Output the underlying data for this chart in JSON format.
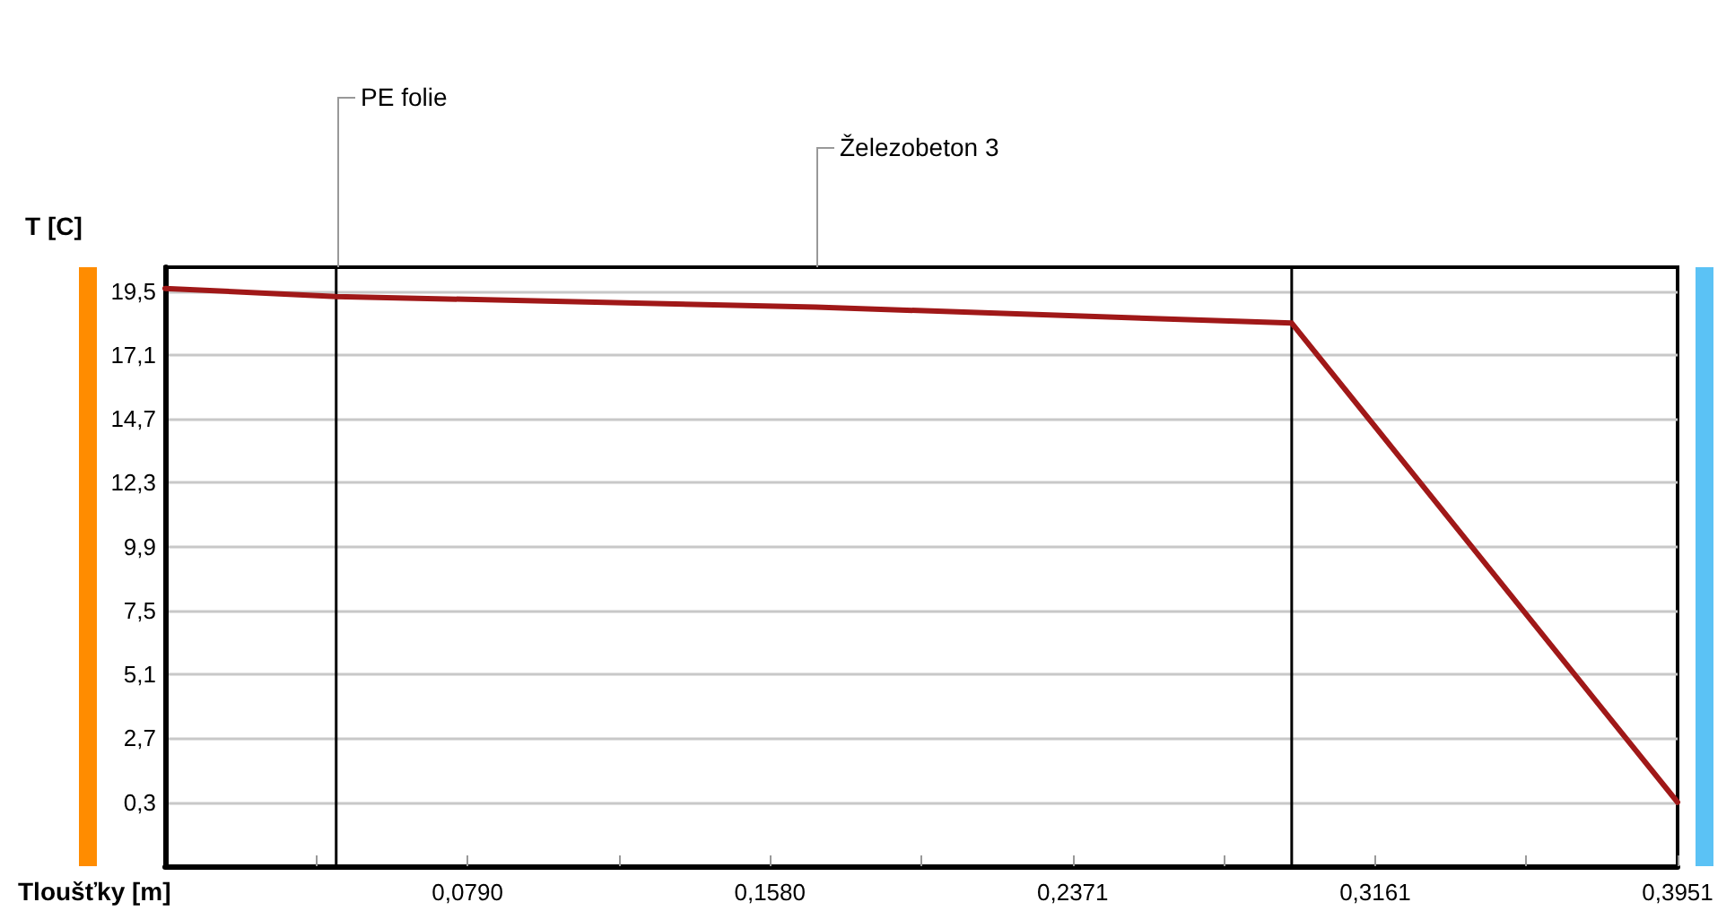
{
  "chart_data": {
    "type": "line",
    "xlabel": "Tloušťky [m]",
    "ylabel": "T [C]",
    "x": [
      0,
      0.0447,
      0.17,
      0.2943,
      0.3951
    ],
    "series": [
      {
        "color": "#a01818",
        "values": [
          19.6,
          19.3,
          18.9,
          18.3,
          0.3
        ]
      }
    ],
    "xlim": [
      0,
      0.3951
    ],
    "xticks": [
      {
        "value": 0.0395,
        "label": null
      },
      {
        "value": 0.079,
        "label": "0,0790"
      },
      {
        "value": 0.1185,
        "label": null
      },
      {
        "value": 0.158,
        "label": "0,1580"
      },
      {
        "value": 0.1976,
        "label": null
      },
      {
        "value": 0.2371,
        "label": "0,2371"
      },
      {
        "value": 0.2766,
        "label": null
      },
      {
        "value": 0.3161,
        "label": "0,3161"
      },
      {
        "value": 0.3556,
        "label": null
      },
      {
        "value": 0.3951,
        "label": "0,3951"
      }
    ],
    "ylim": [
      -2.1,
      20.4
    ],
    "yticks": [
      {
        "value": 0.3,
        "label": "0,3"
      },
      {
        "value": 2.7,
        "label": "2,7"
      },
      {
        "value": 5.1,
        "label": "5,1"
      },
      {
        "value": 7.5,
        "label": "7,5"
      },
      {
        "value": 9.9,
        "label": "9,9"
      },
      {
        "value": 12.3,
        "label": "12,3"
      },
      {
        "value": 14.7,
        "label": "14,7"
      },
      {
        "value": 17.1,
        "label": "17,1"
      },
      {
        "value": 19.5,
        "label": "19,5"
      }
    ],
    "ref_lines": [
      {
        "axis": "x",
        "value": 0.0447,
        "color": "#000000"
      },
      {
        "axis": "x",
        "value": 0.2943,
        "color": "#000000"
      }
    ],
    "annotations": [
      "PE folie",
      "Železobeton 3"
    ],
    "grid": "y",
    "marker": "none",
    "line_style": "solid"
  }
}
